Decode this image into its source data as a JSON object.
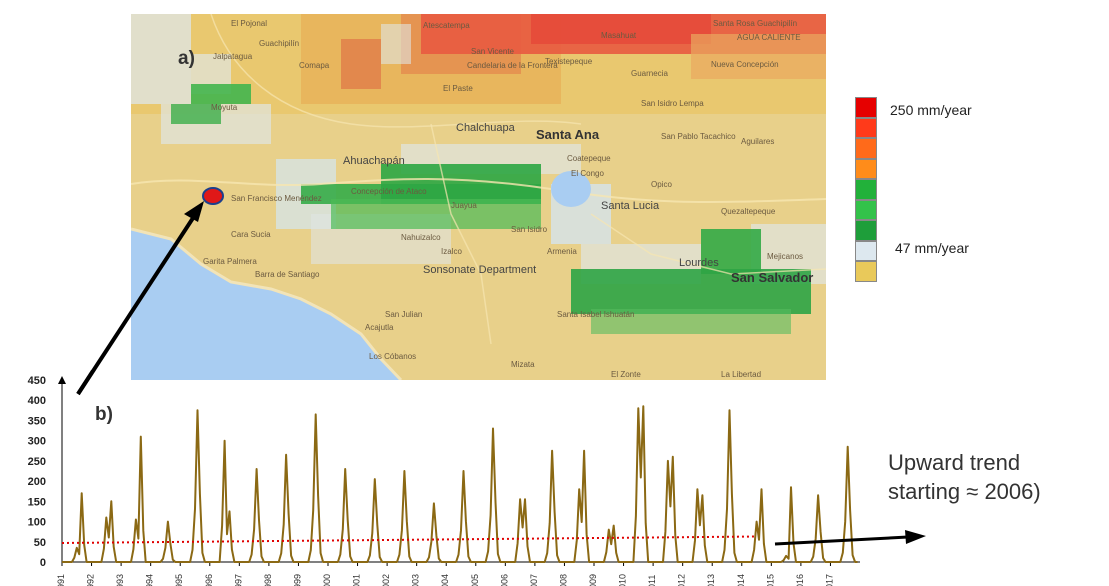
{
  "map": {
    "panel_label": "a)",
    "place_names": [
      "El Pojonal",
      "Guachipilín",
      "Jalpatagua",
      "Comapa",
      "Atescatempa",
      "San Vicente",
      "Candelaria de la Frontera",
      "El Paste",
      "Texistepeque",
      "Guarnecia",
      "Nueva Concepción",
      "Santa Rosa Guachipilín",
      "Masahuat",
      "AGUA CALIENTE",
      "Moyuta",
      "Chalchuapa",
      "Santa Ana",
      "San Isidro Lempa",
      "San Pablo Tacachico",
      "Aguilares",
      "Ahuachapán",
      "Coatepeque",
      "El Congo",
      "Opico",
      "San Francisco Menéndez",
      "Concepción de Ataco",
      "Juayua",
      "Santa Lucia",
      "Quezaltepeque",
      "Cara Sucia",
      "Nahuizalco",
      "San Isidro",
      "Garita Palmera",
      "Barra de Santiago",
      "Izalco",
      "Armenia",
      "Sonsonate Department",
      "Lourdes",
      "San Salvador",
      "Mejicanos",
      "San Julian",
      "Santa Isabel Ishuatán",
      "Acajutla",
      "Los Cóbanos",
      "Mizata",
      "El Zonte",
      "La Libertad",
      "Tacuba"
    ]
  },
  "legend": {
    "max_label": "250 mm/year",
    "min_label": "47 mm/year",
    "colors": [
      "#e60000",
      "#ff3a1a",
      "#ff6a1a",
      "#ff8c1a",
      "#22b13a",
      "#33c24a",
      "#1e9e3a",
      "#dde8ef",
      "#e9c95a"
    ]
  },
  "annotation": {
    "trend_line1": "Upward trend",
    "trend_line2": "starting ≈ 2006)"
  },
  "chart_data": {
    "type": "line",
    "panel_label": "b)",
    "title": "",
    "xlabel": "",
    "ylabel": "",
    "ylim": [
      0,
      450
    ],
    "yticks": [
      0,
      50,
      100,
      150,
      200,
      250,
      300,
      350,
      400,
      450
    ],
    "x_tick_labels": [
      "1991",
      "1992",
      "1993",
      "1994",
      "1995",
      "1996",
      "1997",
      "1998",
      "1999",
      "2000",
      "2001",
      "2002",
      "2003",
      "2004",
      "2005",
      "2006",
      "2007",
      "2008",
      "2009",
      "2010",
      "2011",
      "2012",
      "2013",
      "2014",
      "2015",
      "2016",
      "2017"
    ],
    "series": [
      {
        "color": "#8b6914",
        "style": "solid",
        "peaks_per_year": [
          [
            35,
            170
          ],
          [
            110,
            150
          ],
          [
            105,
            310
          ],
          [
            100
          ],
          [
            375
          ],
          [
            300,
            125
          ],
          [
            230
          ],
          [
            265
          ],
          [
            365
          ],
          [
            230
          ],
          [
            205
          ],
          [
            225
          ],
          [
            145
          ],
          [
            225
          ],
          [
            330
          ],
          [
            155,
            155
          ],
          [
            275
          ],
          [
            180,
            275
          ],
          [
            80,
            90
          ],
          [
            380,
            385
          ],
          [
            250,
            260
          ],
          [
            180,
            165
          ],
          [
            375
          ],
          [
            100,
            180
          ],
          [
            15,
            185
          ],
          [
            165
          ],
          [
            285
          ]
        ]
      },
      {
        "color": "#e00000",
        "style": "dotted",
        "start": 47,
        "end": 63
      }
    ]
  }
}
